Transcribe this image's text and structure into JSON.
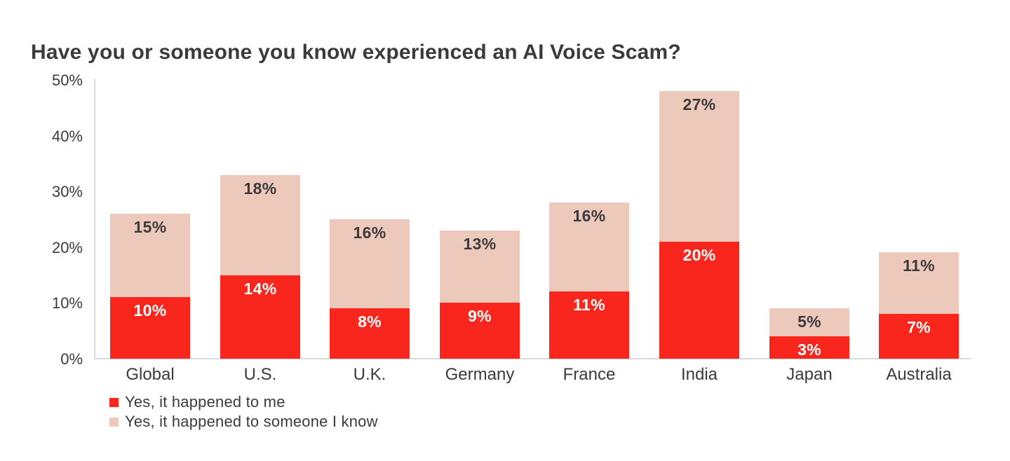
{
  "page": {
    "background": "#ffffff"
  },
  "colors": {
    "series_me": "#f9261d",
    "series_know": "#ecc9bb",
    "text_dark": "#3d3a3b",
    "label_on_red": "#ffffff",
    "axis_line": "#dadada"
  },
  "chart_data": {
    "type": "bar",
    "stacked": true,
    "title": "Have you or someone you know experienced an AI Voice Scam?",
    "categories": [
      "Global",
      "U.S.",
      "U.K.",
      "Germany",
      "France",
      "India",
      "Japan",
      "Australia"
    ],
    "series": [
      {
        "name": "Yes, it happened to me",
        "color": "#f9261d",
        "values": [
          10,
          14,
          8,
          9,
          11,
          20,
          3,
          7
        ]
      },
      {
        "name": "Yes, it happened to someone I know",
        "color": "#ecc9bb",
        "values": [
          15,
          18,
          16,
          13,
          16,
          27,
          5,
          11
        ]
      }
    ],
    "xlabel": "",
    "ylabel": "",
    "ylim": [
      0,
      50
    ],
    "yticks": [
      "0%",
      "10%",
      "20%",
      "30%",
      "40%",
      "50%"
    ],
    "grid": false,
    "legend_position": "bottom-left",
    "value_label_format": "{value}%"
  }
}
